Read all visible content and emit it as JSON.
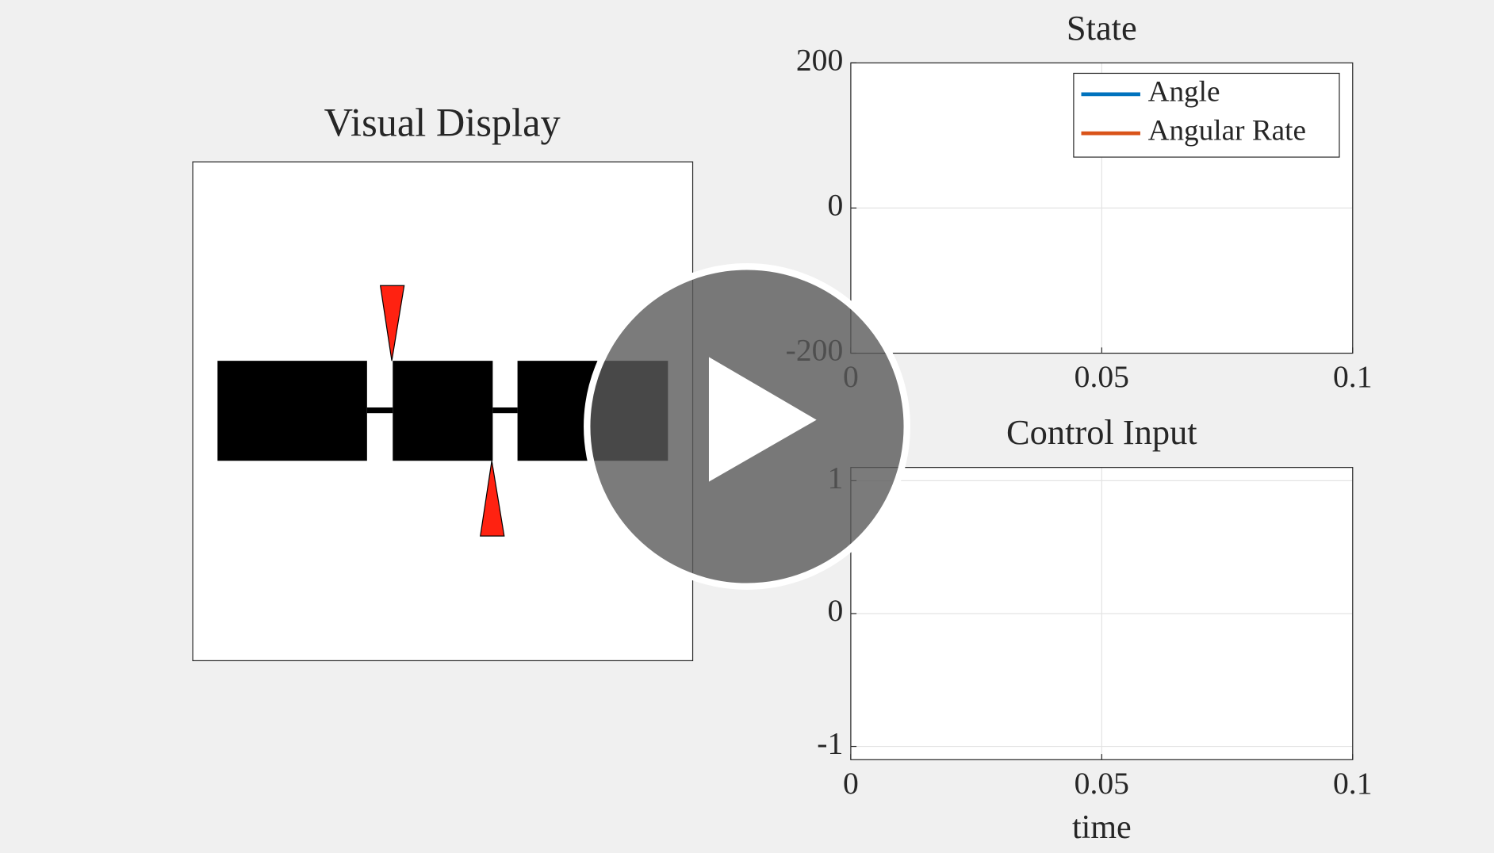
{
  "visual_display": {
    "title": "Visual Display"
  },
  "chart_data": [
    {
      "type": "line",
      "title": "State",
      "x": [],
      "series": [
        {
          "name": "Angle",
          "color": "#0072BD",
          "values": []
        },
        {
          "name": "Angular Rate",
          "color": "#D95319",
          "values": []
        }
      ],
      "xlim": [
        0,
        0.1
      ],
      "xticks": [
        0,
        0.05,
        0.1
      ],
      "ylim": [
        -200,
        200
      ],
      "yticks": [
        -200,
        0,
        200
      ],
      "grid": true,
      "legend": "upper-right"
    },
    {
      "type": "line",
      "title": "Control Input",
      "xlabel": "time",
      "x": [],
      "series": [],
      "xlim": [
        0,
        0.1
      ],
      "xticks": [
        0,
        0.05,
        0.1
      ],
      "ylim": [
        -1.1,
        1.1
      ],
      "yticks": [
        -1,
        0,
        1
      ],
      "grid": true
    }
  ]
}
